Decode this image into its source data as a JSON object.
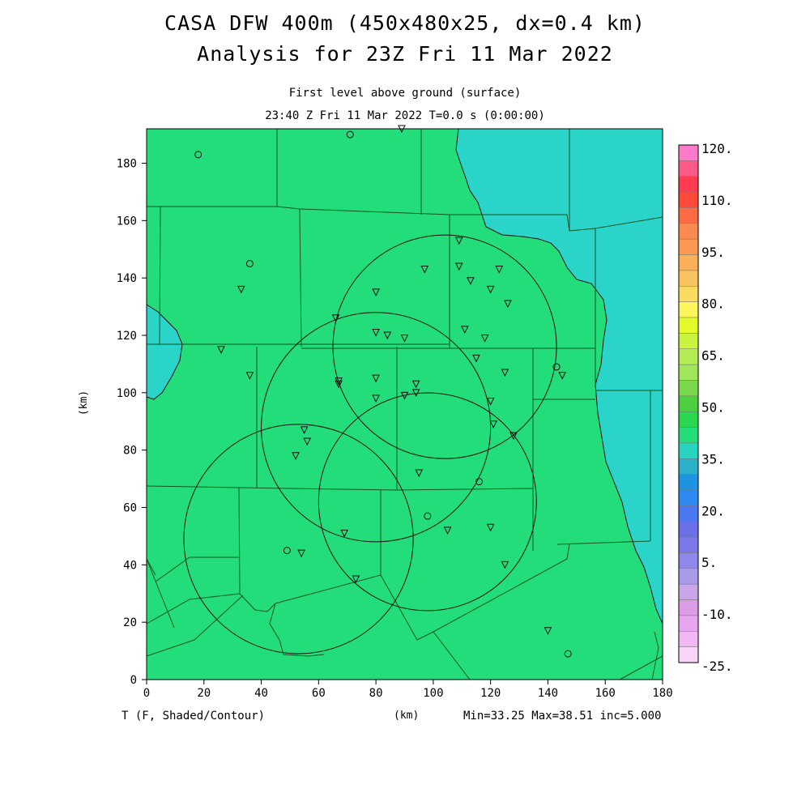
{
  "title": "CASA DFW 400m (450x480x25, dx=0.4 km)",
  "subtitle": "Analysis for 23Z Fri 11 Mar 2022",
  "level_label": "First level above ground (surface)",
  "time_label": "23:40 Z Fri 11 Mar 2022    T=0.0 s (0:00:00)",
  "field_label": "T (F, Shaded/Contour)",
  "x_unit_label": "(km)",
  "y_unit_label": "(km)",
  "stats_label": "Min=33.25 Max=38.51 inc=5.000",
  "colors": {
    "land": "#22dd7a",
    "water": "#2ad4c8",
    "lines": "#222222"
  },
  "map": {
    "x_range": [
      0,
      180
    ],
    "y_range": [
      0,
      192
    ],
    "x_ticks": [
      "0",
      "20",
      "40",
      "60",
      "80",
      "100",
      "120",
      "140",
      "160",
      "180"
    ],
    "y_ticks": [
      "0",
      "20",
      "40",
      "60",
      "80",
      "100",
      "120",
      "140",
      "160",
      "180"
    ],
    "x_tick_values": [
      0,
      20,
      40,
      60,
      80,
      100,
      120,
      140,
      160,
      180
    ],
    "y_tick_values": [
      0,
      20,
      40,
      60,
      80,
      100,
      120,
      140,
      160,
      180
    ],
    "radar_coverage": [
      {
        "cx": 104,
        "cy": 116,
        "r": 39
      },
      {
        "cx": 80,
        "cy": 88,
        "r": 40
      },
      {
        "cx": 98,
        "cy": 62,
        "r": 38
      },
      {
        "cx": 53,
        "cy": 49,
        "r": 40
      }
    ],
    "stations_triangle": [
      [
        89,
        192
      ],
      [
        33,
        136
      ],
      [
        26,
        115
      ],
      [
        36,
        106
      ],
      [
        66,
        126
      ],
      [
        67,
        104
      ],
      [
        67,
        103
      ],
      [
        80,
        135
      ],
      [
        80,
        121
      ],
      [
        84,
        120
      ],
      [
        90,
        119
      ],
      [
        80,
        105
      ],
      [
        80,
        98
      ],
      [
        90,
        99
      ],
      [
        94,
        103
      ],
      [
        94,
        100
      ],
      [
        97,
        143
      ],
      [
        109,
        153
      ],
      [
        109,
        144
      ],
      [
        113,
        139
      ],
      [
        111,
        122
      ],
      [
        118,
        119
      ],
      [
        120,
        136
      ],
      [
        123,
        143
      ],
      [
        126,
        131
      ],
      [
        115,
        112
      ],
      [
        125,
        107
      ],
      [
        120,
        97
      ],
      [
        121,
        89
      ],
      [
        128,
        85
      ],
      [
        145,
        106
      ],
      [
        55,
        87
      ],
      [
        56,
        83
      ],
      [
        52,
        78
      ],
      [
        95,
        72
      ],
      [
        69,
        51
      ],
      [
        54,
        44
      ],
      [
        73,
        35
      ],
      [
        105,
        52
      ],
      [
        120,
        53
      ],
      [
        125,
        40
      ],
      [
        140,
        17
      ]
    ],
    "stations_circle": [
      [
        18,
        183
      ],
      [
        71,
        190
      ],
      [
        36,
        145
      ],
      [
        143,
        109
      ],
      [
        116,
        69
      ],
      [
        98,
        57
      ],
      [
        49,
        45
      ],
      [
        147,
        9
      ]
    ]
  },
  "colorbar": {
    "labels": [
      "120.",
      "110.",
      "95.",
      "80.",
      "65.",
      "50.",
      "35.",
      "20.",
      "5.",
      "-10.",
      "-25."
    ],
    "colors": [
      "#ff7ac8",
      "#ff5a88",
      "#ff3c50",
      "#ff4a3a",
      "#ff6a44",
      "#fa8a50",
      "#fb9a50",
      "#fbaf58",
      "#f8c460",
      "#fadc60",
      "#fbf45a",
      "#e4fb2a",
      "#c8f440",
      "#b4ec55",
      "#a0e65a",
      "#7ad84a",
      "#4cd040",
      "#2ad84f",
      "#22dd7a",
      "#26d4c0",
      "#2ab0c8",
      "#1e94e0",
      "#2e8af0",
      "#4a78f0",
      "#6a70e8",
      "#7a78e8",
      "#8e88ea",
      "#a89ae8",
      "#c8a6e8",
      "#dc9ce8",
      "#e8a6f0",
      "#f2b8f4",
      "#f8d4f8"
    ]
  }
}
